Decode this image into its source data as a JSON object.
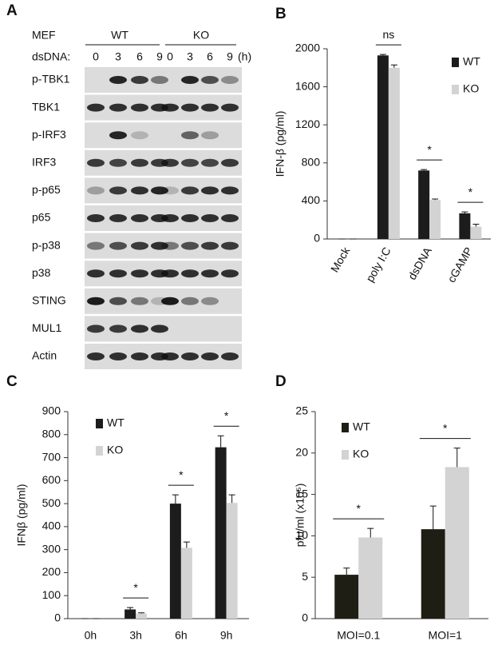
{
  "blot": {
    "panel": "A",
    "cell_label": "MEF",
    "groups": [
      "WT",
      "KO"
    ],
    "treatment_label": "dsDNA:",
    "lanes": [
      "0",
      "3",
      "6",
      "9",
      "0",
      "3",
      "6",
      "9"
    ],
    "unit": "(h)",
    "rows": [
      "p-TBK1",
      "TBK1",
      "p-IRF3",
      "IRF3",
      "p-p65",
      "p65",
      "p-p38",
      "p38",
      "STING",
      "MUL1",
      "Actin"
    ]
  },
  "chart_data": [
    {
      "type": "bar",
      "panel": "B",
      "y_label": "IFN-β (pg/ml)",
      "categories": [
        "Mock",
        "poly I:C",
        "dsDNA",
        "cGAMP"
      ],
      "series": [
        {
          "name": "WT",
          "color": "#1c1c1c",
          "values": [
            0,
            1930,
            720,
            270
          ],
          "errors": [
            0,
            10,
            10,
            15
          ]
        },
        {
          "name": "KO",
          "color": "#d3d3d3",
          "values": [
            0,
            1800,
            410,
            130
          ],
          "errors": [
            0,
            30,
            10,
            25
          ]
        }
      ],
      "annotations": [
        null,
        "ns",
        "*",
        "*"
      ],
      "ylim": [
        0,
        2000
      ],
      "yticks": [
        0,
        400,
        800,
        1200,
        1600,
        2000
      ],
      "legend": "upper right"
    },
    {
      "type": "bar",
      "panel": "C",
      "y_label": "IFNβ (pg/ml)",
      "categories": [
        "0h",
        "3h",
        "6h",
        "9h"
      ],
      "series": [
        {
          "name": "WT",
          "color": "#1c1c1c",
          "values": [
            0,
            40,
            500,
            745
          ],
          "errors": [
            0,
            8,
            38,
            50
          ]
        },
        {
          "name": "KO",
          "color": "#d3d3d3",
          "values": [
            0,
            22,
            308,
            503
          ],
          "errors": [
            0,
            3,
            25,
            35
          ]
        }
      ],
      "annotations": [
        null,
        "*",
        "*",
        "*"
      ],
      "ylim": [
        0,
        900
      ],
      "yticks": [
        0,
        100,
        200,
        300,
        400,
        500,
        600,
        700,
        800,
        900
      ],
      "legend": "upper left"
    },
    {
      "type": "bar",
      "panel": "D",
      "y_label": "pfu/ml (x10⁵)",
      "categories": [
        "MOI=0.1",
        "MOI=1"
      ],
      "series": [
        {
          "name": "WT",
          "color": "#1e1e14",
          "values": [
            5.3,
            10.8
          ],
          "errors": [
            0.8,
            2.8
          ]
        },
        {
          "name": "KO",
          "color": "#d3d3d3",
          "values": [
            9.8,
            18.3
          ],
          "errors": [
            1.1,
            2.3
          ]
        }
      ],
      "annotations": [
        "*",
        "*"
      ],
      "ylim": [
        0,
        25
      ],
      "yticks": [
        0,
        5,
        10,
        15,
        20,
        25
      ],
      "legend": "upper left"
    }
  ]
}
